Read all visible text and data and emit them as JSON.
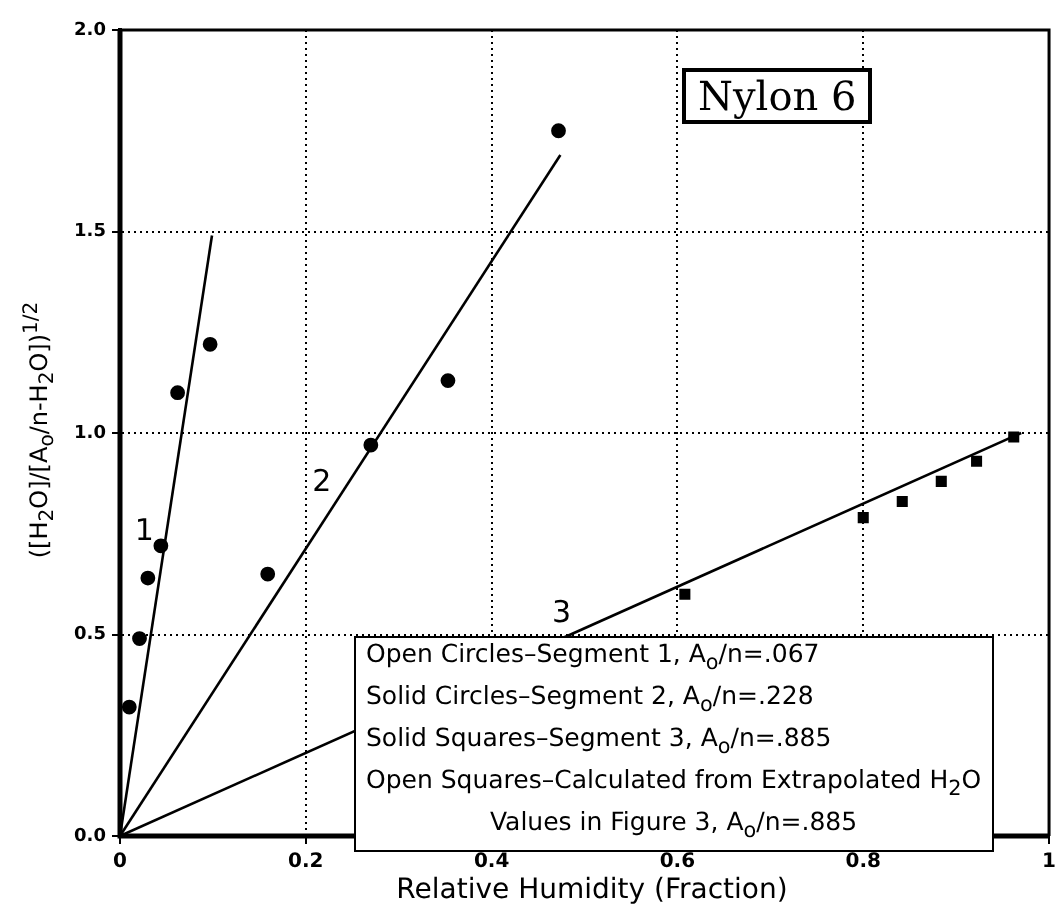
{
  "chart_data": {
    "type": "scatter",
    "title": "Nylon 6",
    "xlabel": "Relative Humidity (Fraction)",
    "ylabel": "([H$_{2}$O]/[A$_{o}$/n-H$_{2}$O])$^{1/2}$",
    "xlim": [
      0,
      1
    ],
    "xticks": [
      0,
      0.2,
      0.4,
      0.6,
      0.8,
      1
    ],
    "ylim": [
      0,
      2
    ],
    "yticks": [
      {
        "value": 0,
        "label": "0.0"
      },
      0.5,
      {
        "value": 1,
        "label": "1.0"
      },
      1.5,
      {
        "value": 2,
        "label": "2.0"
      }
    ],
    "grid": true,
    "legend": false,
    "series": [
      {
        "type": "scatter",
        "marker": "circle",
        "color": "#000000",
        "x": [
          0.01,
          0.021,
          0.03,
          0.044,
          0.062,
          0.097
        ],
        "values": [
          0.32,
          0.49,
          0.64,
          0.72,
          1.1,
          1.22
        ]
      },
      {
        "type": "scatter",
        "marker": "circle",
        "color": "#000000",
        "x": [
          0.159,
          0.27,
          0.353,
          0.472
        ],
        "values": [
          0.65,
          0.97,
          1.13,
          1.75
        ]
      },
      {
        "type": "scatter",
        "marker": "square",
        "color": "#000000",
        "x": [
          0.608,
          0.8
        ],
        "values": [
          0.6,
          0.79
        ]
      },
      {
        "type": "scatter",
        "marker": "square",
        "color": "#000000",
        "x": [
          0.842,
          0.884,
          0.922,
          0.962
        ],
        "values": [
          0.83,
          0.88,
          0.93,
          0.99
        ]
      },
      {
        "type": "line",
        "name": "1",
        "marker": "none",
        "color": "#000000",
        "x": [
          0,
          0.099
        ],
        "values": [
          0,
          1.49
        ]
      },
      {
        "type": "line",
        "name": "2",
        "marker": "none",
        "color": "#000000",
        "x": [
          0,
          0.474
        ],
        "values": [
          0,
          1.69
        ]
      },
      {
        "type": "line",
        "name": "3",
        "marker": "none",
        "color": "#000000",
        "x": [
          0,
          0.97
        ],
        "values": [
          0,
          1.0
        ]
      }
    ],
    "annotations": [
      "Open Circles–Segment 1, A$_{o}$/n=.067",
      "Solid Circles–Segment 2, A$_{o}$/n=.228",
      "Solid Squares–Segment 3, A$_{o}$/n=.885",
      "Open Squares–Calculated from Extrapolated H$_{2}$O",
      "Values in Figure 3, A$_{o}$/n=.885"
    ]
  }
}
